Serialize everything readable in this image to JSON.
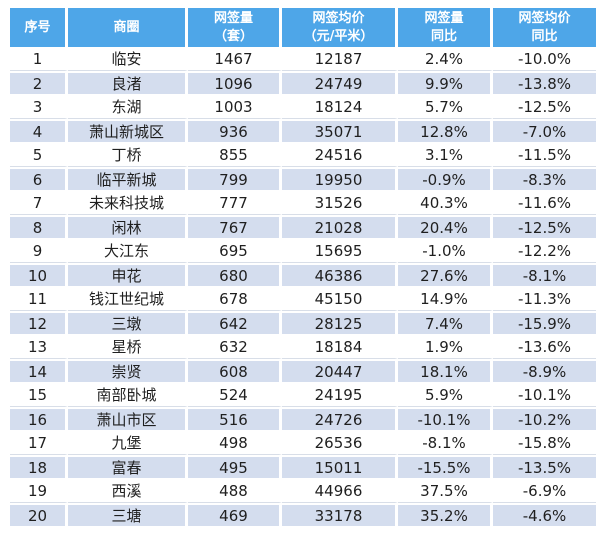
{
  "styles": {
    "header_bg": "#4EA6E8",
    "row_shade": "#D4DDEE",
    "header_text": "#FFFFFF",
    "body_text": "#1F1F1F",
    "divider": "#D8DEE8"
  },
  "table": {
    "header_lines": [
      "序号",
      "商圈",
      "网签量\n（套）",
      "网签均价\n（元/平米）",
      "网签量\n同比",
      "网签均价\n同比"
    ],
    "column_keys": [
      "rank",
      "district",
      "signed-volume",
      "signed-avg-price",
      "volume-yoy",
      "avg-price-yoy"
    ]
  },
  "chart_data": {
    "type": "table",
    "title": "",
    "columns": [
      "序号",
      "商圈",
      "网签量（套）",
      "网签均价（元/平米）",
      "网签量同比",
      "网签均价同比"
    ],
    "rows": [
      [
        "1",
        "临安",
        "1467",
        "12187",
        "2.4%",
        "-10.0%"
      ],
      [
        "2",
        "良渚",
        "1096",
        "24749",
        "9.9%",
        "-13.8%"
      ],
      [
        "3",
        "东湖",
        "1003",
        "18124",
        "5.7%",
        "-12.5%"
      ],
      [
        "4",
        "萧山新城区",
        "936",
        "35071",
        "12.8%",
        "-7.0%"
      ],
      [
        "5",
        "丁桥",
        "855",
        "24516",
        "3.1%",
        "-11.5%"
      ],
      [
        "6",
        "临平新城",
        "799",
        "19950",
        "-0.9%",
        "-8.3%"
      ],
      [
        "7",
        "未来科技城",
        "777",
        "31526",
        "40.3%",
        "-11.6%"
      ],
      [
        "8",
        "闲林",
        "767",
        "21028",
        "20.4%",
        "-12.5%"
      ],
      [
        "9",
        "大江东",
        "695",
        "15695",
        "-1.0%",
        "-12.2%"
      ],
      [
        "10",
        "申花",
        "680",
        "46386",
        "27.6%",
        "-8.1%"
      ],
      [
        "11",
        "钱江世纪城",
        "678",
        "45150",
        "14.9%",
        "-11.3%"
      ],
      [
        "12",
        "三墩",
        "642",
        "28125",
        "7.4%",
        "-15.9%"
      ],
      [
        "13",
        "星桥",
        "632",
        "18184",
        "1.9%",
        "-13.6%"
      ],
      [
        "14",
        "崇贤",
        "608",
        "20447",
        "18.1%",
        "-8.9%"
      ],
      [
        "15",
        "南部卧城",
        "524",
        "24195",
        "5.9%",
        "-10.1%"
      ],
      [
        "16",
        "萧山市区",
        "516",
        "24726",
        "-10.1%",
        "-10.2%"
      ],
      [
        "17",
        "九堡",
        "498",
        "26536",
        "-8.1%",
        "-15.8%"
      ],
      [
        "18",
        "富春",
        "495",
        "15011",
        "-15.5%",
        "-13.5%"
      ],
      [
        "19",
        "西溪",
        "488",
        "44966",
        "37.5%",
        "-6.9%"
      ],
      [
        "20",
        "三塘",
        "469",
        "33178",
        "35.2%",
        "-4.6%"
      ]
    ]
  }
}
